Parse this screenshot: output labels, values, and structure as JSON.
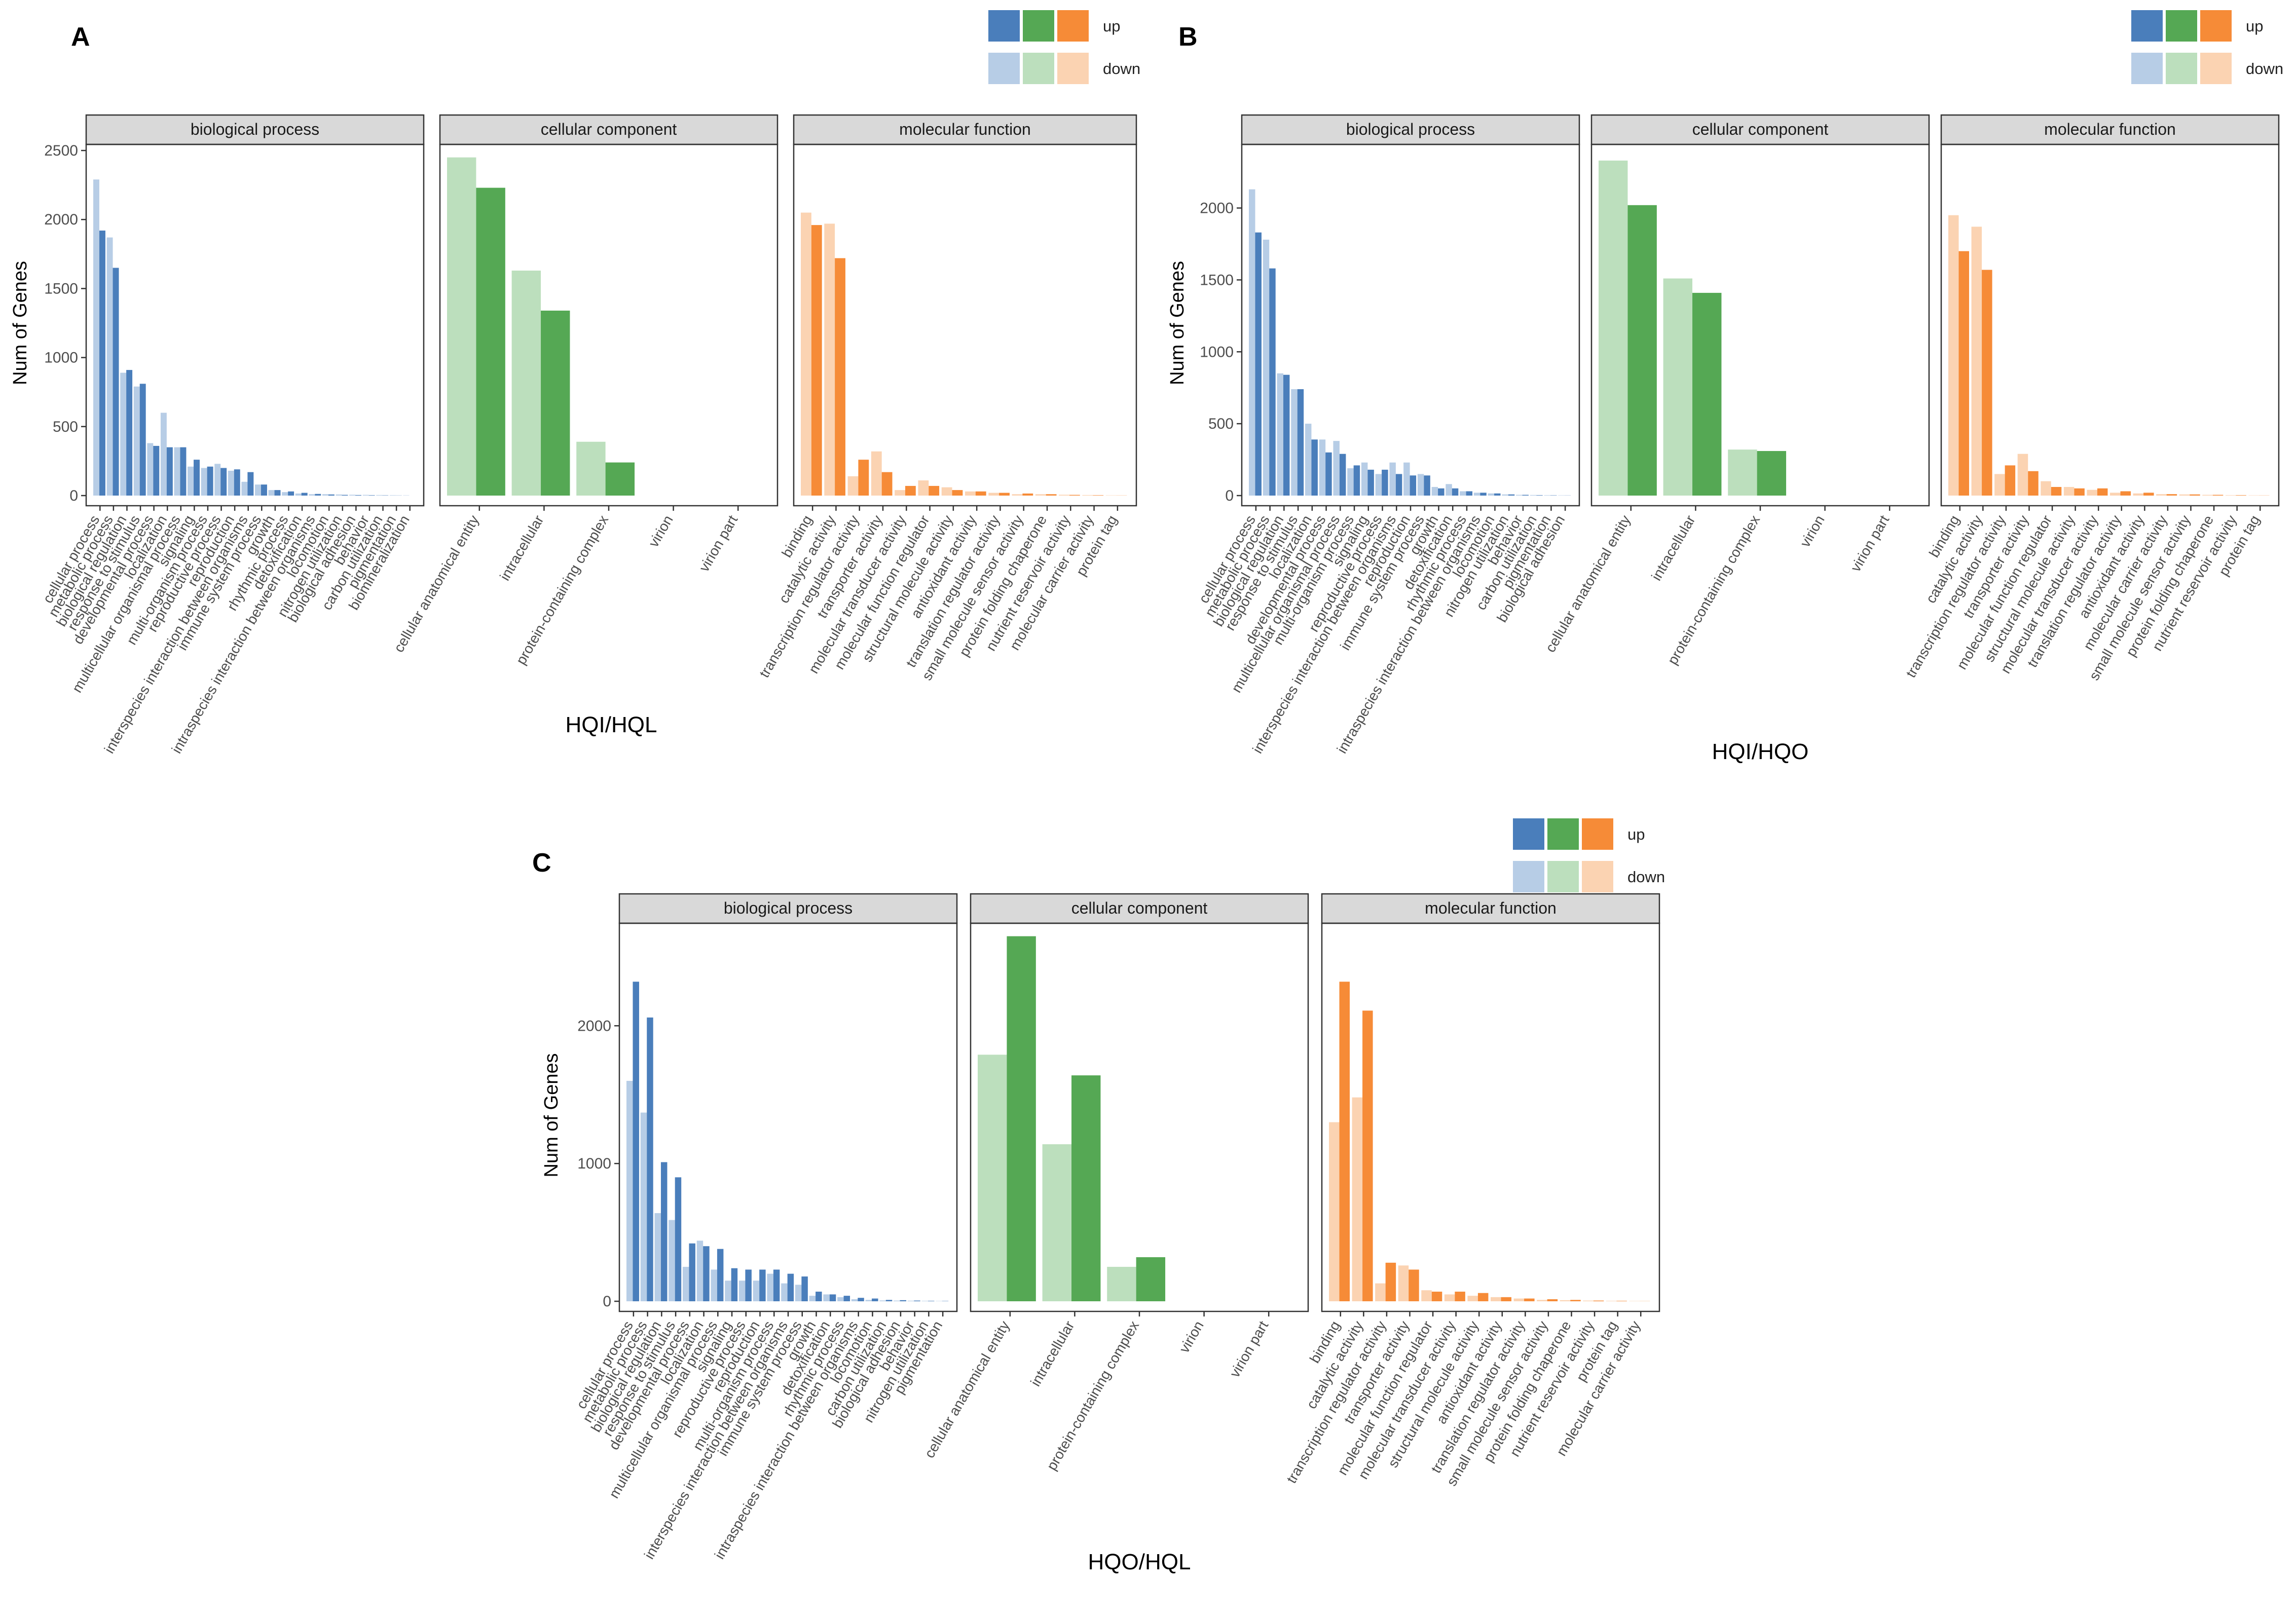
{
  "legend": {
    "up_label": "up",
    "down_label": "down",
    "up_colors": [
      "#4a7ebb",
      "#55a854",
      "#f68b37"
    ],
    "down_colors": [
      "#b7cde6",
      "#bcdfbd",
      "#fbd3b2"
    ]
  },
  "y_axis_label": "Num of Genes",
  "facet_labels": [
    "biological process",
    "cellular component",
    "molecular function"
  ],
  "chart_data": [
    {
      "type": "bar",
      "panel_label": "A",
      "title": "",
      "xlabel": "HQI/HQL",
      "ylabel": "Num of Genes",
      "ylim": [
        0,
        2500
      ],
      "yticks": [
        0,
        500,
        1000,
        1500,
        2000,
        2500
      ],
      "grid": false,
      "legend_position": "top-right",
      "facets": [
        {
          "name": "biological process",
          "categories": [
            "cellular process",
            "metabolic process",
            "biological regulation",
            "response to stimulus",
            "developmental process",
            "localization",
            "multicellular organismal process",
            "signaling",
            "multi-organism process",
            "reproductive process",
            "reproduction",
            "interspecies interaction between organisms",
            "immune system process",
            "growth",
            "rhythmic process",
            "detoxification",
            "intraspecies interaction between organisms",
            "locomotion",
            "nitrogen utilization",
            "biological adhesion",
            "behavior",
            "carbon utilization",
            "pigmentation",
            "biomineralization"
          ],
          "down": [
            2290,
            1870,
            890,
            790,
            380,
            600,
            350,
            210,
            200,
            230,
            180,
            100,
            80,
            40,
            25,
            15,
            10,
            10,
            8,
            6,
            5,
            4,
            3,
            2
          ],
          "up": [
            1920,
            1650,
            910,
            810,
            360,
            350,
            350,
            260,
            210,
            200,
            190,
            170,
            80,
            40,
            30,
            20,
            12,
            8,
            5,
            4,
            3,
            2,
            1,
            0
          ]
        },
        {
          "name": "cellular component",
          "categories": [
            "cellular anatomical entity",
            "intracellular",
            "protein-containing complex",
            "virion",
            "virion part"
          ],
          "down": [
            2450,
            1630,
            390,
            0,
            0
          ],
          "up": [
            2230,
            1340,
            240,
            0,
            0
          ]
        },
        {
          "name": "molecular function",
          "categories": [
            "binding",
            "catalytic activity",
            "transcription regulator activity",
            "transporter activity",
            "molecular transducer activity",
            "molecular function regulator",
            "structural molecule activity",
            "antioxidant activity",
            "translation regulator activity",
            "small molecule sensor activity",
            "protein folding chaperone",
            "nutrient reservoir activity",
            "molecular carrier activity",
            "protein tag"
          ],
          "down": [
            2050,
            1970,
            140,
            320,
            40,
            110,
            60,
            30,
            20,
            10,
            10,
            6,
            4,
            2
          ],
          "up": [
            1960,
            1720,
            260,
            170,
            70,
            70,
            40,
            30,
            20,
            15,
            10,
            5,
            3,
            1
          ]
        }
      ]
    },
    {
      "type": "bar",
      "panel_label": "B",
      "title": "",
      "xlabel": "HQI/HQO",
      "ylabel": "Num of Genes",
      "ylim": [
        0,
        2400
      ],
      "yticks": [
        0,
        500,
        1000,
        1500,
        2000
      ],
      "grid": false,
      "legend_position": "top-right",
      "facets": [
        {
          "name": "biological process",
          "categories": [
            "cellular process",
            "metabolic process",
            "biological regulation",
            "response to stimulus",
            "localization",
            "developmental process",
            "multicellular organismal process",
            "multi-organism process",
            "signaling",
            "reproductive process",
            "interspecies interaction between organisms",
            "reproduction",
            "immune system process",
            "growth",
            "detoxification",
            "rhythmic process",
            "intraspecies interaction between organisms",
            "locomotion",
            "nitrogen utilization",
            "behavior",
            "carbon utilization",
            "pigmentation",
            "biological adhesion"
          ],
          "down": [
            2130,
            1780,
            850,
            740,
            500,
            390,
            380,
            190,
            230,
            150,
            230,
            230,
            150,
            60,
            80,
            30,
            20,
            15,
            8,
            5,
            4,
            3,
            2
          ],
          "up": [
            1830,
            1580,
            840,
            740,
            390,
            300,
            290,
            210,
            180,
            180,
            150,
            140,
            140,
            50,
            50,
            30,
            20,
            15,
            8,
            5,
            3,
            2,
            1
          ]
        },
        {
          "name": "cellular component",
          "categories": [
            "cellular anatomical entity",
            "intracellular",
            "protein-containing complex",
            "virion",
            "virion part"
          ],
          "down": [
            2330,
            1510,
            320,
            0,
            0
          ],
          "up": [
            2020,
            1410,
            310,
            0,
            0
          ]
        },
        {
          "name": "molecular function",
          "categories": [
            "binding",
            "catalytic activity",
            "transcription regulator activity",
            "transporter activity",
            "molecular function regulator",
            "structural molecule activity",
            "molecular transducer activity",
            "translation regulator activity",
            "antioxidant activity",
            "molecular carrier activity",
            "small molecule sensor activity",
            "protein folding chaperone",
            "nutrient reservoir activity",
            "protein tag"
          ],
          "down": [
            1950,
            1870,
            150,
            290,
            100,
            60,
            40,
            20,
            15,
            10,
            8,
            5,
            3,
            2
          ],
          "up": [
            1700,
            1570,
            210,
            170,
            60,
            50,
            50,
            30,
            20,
            10,
            8,
            5,
            3,
            1
          ]
        }
      ]
    },
    {
      "type": "bar",
      "panel_label": "C",
      "title": "",
      "xlabel": "HQO/HQL",
      "ylabel": "Num of Genes",
      "ylim": [
        0,
        2700
      ],
      "yticks": [
        0,
        1000,
        2000
      ],
      "grid": false,
      "legend_position": "top-right",
      "facets": [
        {
          "name": "biological process",
          "categories": [
            "cellular process",
            "metabolic process",
            "biological regulation",
            "response to stimulus",
            "developmental process",
            "localization",
            "multicellular organismal process",
            "signaling",
            "reproductive process",
            "reproduction",
            "multi-organism process",
            "interspecies interaction between organisms",
            "immune system process",
            "growth",
            "detoxification",
            "rhythmic process",
            "intraspecies interaction between organisms",
            "locomotion",
            "carbon utilization",
            "biological adhesion",
            "behavior",
            "nitrogen utilization",
            "pigmentation"
          ],
          "down": [
            1600,
            1370,
            640,
            590,
            250,
            440,
            230,
            150,
            150,
            150,
            200,
            130,
            120,
            40,
            50,
            30,
            15,
            10,
            6,
            5,
            4,
            3,
            2
          ],
          "up": [
            2320,
            2060,
            1010,
            900,
            420,
            400,
            380,
            240,
            230,
            230,
            230,
            200,
            180,
            70,
            50,
            40,
            25,
            20,
            10,
            8,
            5,
            3,
            2
          ]
        },
        {
          "name": "cellular component",
          "categories": [
            "cellular anatomical entity",
            "intracellular",
            "protein-containing complex",
            "virion",
            "virion part"
          ],
          "down": [
            1790,
            1140,
            250,
            0,
            0
          ],
          "up": [
            2650,
            1640,
            320,
            0,
            0
          ]
        },
        {
          "name": "molecular function",
          "categories": [
            "binding",
            "catalytic activity",
            "transcription regulator activity",
            "transporter activity",
            "molecular function regulator",
            "molecular transducer activity",
            "structural molecule activity",
            "antioxidant activity",
            "translation regulator activity",
            "small molecule sensor activity",
            "protein folding chaperone",
            "nutrient reservoir activity",
            "protein tag",
            "molecular carrier activity"
          ],
          "down": [
            1300,
            1480,
            130,
            260,
            80,
            50,
            40,
            30,
            20,
            10,
            8,
            5,
            3,
            2
          ],
          "up": [
            2320,
            2110,
            280,
            230,
            70,
            70,
            60,
            30,
            20,
            15,
            10,
            5,
            3,
            1
          ]
        }
      ]
    }
  ]
}
